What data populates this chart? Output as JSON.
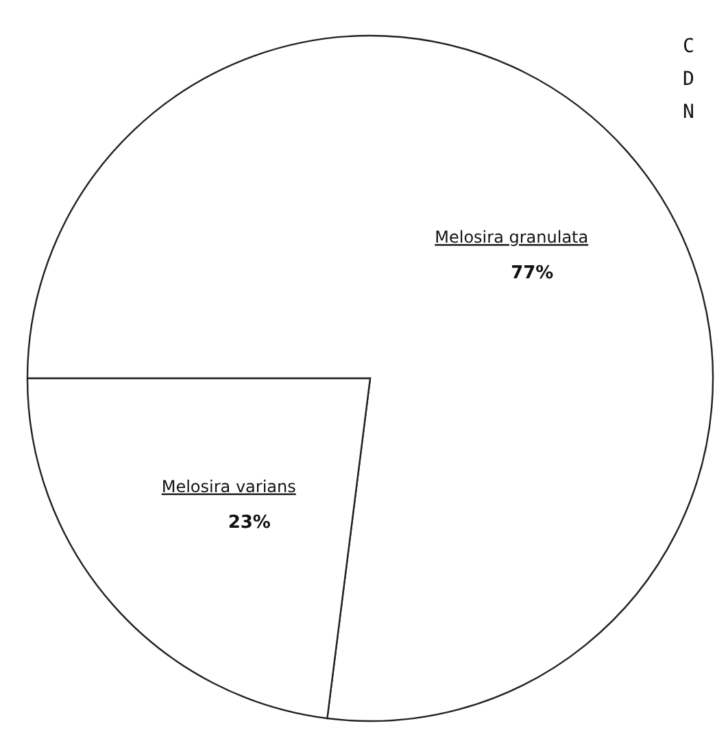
{
  "chart_data": {
    "type": "pie",
    "categories": [
      "Melosira granulata",
      "Melosira varians"
    ],
    "values": [
      77,
      23
    ],
    "colors": [
      "#ffffff",
      "#ffffff"
    ],
    "value_labels": [
      "77%",
      "23%"
    ],
    "annotations": [
      "C",
      "D",
      "N"
    ]
  }
}
